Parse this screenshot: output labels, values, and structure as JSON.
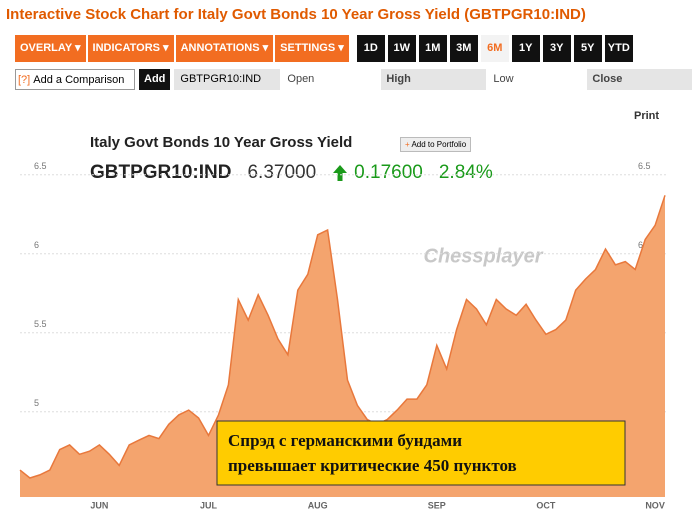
{
  "header": {
    "title": "Interactive Stock Chart for Italy Govt Bonds 10 Year Gross Yield (GBTPGR10:IND)"
  },
  "toolbar": {
    "menus": [
      "OVERLAY ▾",
      "INDICATORS ▾",
      "ANNOTATIONS ▾",
      "SETTINGS ▾"
    ],
    "ranges": [
      "1D",
      "1W",
      "1M",
      "3M",
      "6M",
      "1Y",
      "3Y",
      "5Y",
      "YTD"
    ],
    "active_range": 4
  },
  "comparison": {
    "help": "[?]",
    "placeholder": "Add a Comparison",
    "button": "Add",
    "ticker": "GBTPGR10:IND",
    "fields": [
      "Open",
      "High",
      "Low",
      "Close"
    ]
  },
  "print": "Print",
  "quote": {
    "name": "Italy Govt Bonds 10 Year Gross Yield",
    "portfolio": "Add to Portfolio",
    "ticker": "GBTPGR10:IND",
    "price": "6.37000",
    "change": "0.17600",
    "change_pct": "2.84%"
  },
  "chart_data": {
    "type": "area",
    "watermark": "Chessplayer",
    "annotation": [
      "Спрэд с германскими бундами",
      "превышает критические 450 пунктов"
    ],
    "color": "#f4a46e",
    "line_color": "#e8783c",
    "categories": [
      null,
      null,
      null,
      null,
      null,
      null,
      null,
      null,
      "JUN",
      null,
      null,
      null,
      null,
      null,
      null,
      null,
      null,
      null,
      null,
      "JUL",
      null,
      null,
      null,
      null,
      null,
      null,
      null,
      null,
      null,
      null,
      "AUG",
      null,
      null,
      null,
      null,
      null,
      null,
      null,
      null,
      null,
      null,
      null,
      "SEP",
      null,
      null,
      null,
      null,
      null,
      null,
      null,
      null,
      null,
      null,
      "OCT",
      null,
      null,
      null,
      null,
      null,
      null,
      null,
      null,
      null,
      null,
      "NOV",
      null
    ],
    "values": [
      4.63,
      4.58,
      4.6,
      4.63,
      4.76,
      4.79,
      4.73,
      4.75,
      4.79,
      4.73,
      4.66,
      4.79,
      4.82,
      4.85,
      4.83,
      4.92,
      4.98,
      5.01,
      4.96,
      4.85,
      4.98,
      5.17,
      5.71,
      5.58,
      5.74,
      5.61,
      5.46,
      5.36,
      5.77,
      5.87,
      6.12,
      6.15,
      5.71,
      5.2,
      5.04,
      4.95,
      4.92,
      4.95,
      5.01,
      5.08,
      5.08,
      5.17,
      5.42,
      5.27,
      5.52,
      5.71,
      5.65,
      5.55,
      5.71,
      5.65,
      5.61,
      5.68,
      5.58,
      5.49,
      5.52,
      5.58,
      5.77,
      5.84,
      5.9,
      6.03,
      5.93,
      5.95,
      5.9,
      6.09,
      6.18,
      6.37
    ],
    "ylim": [
      4.46,
      6.72
    ],
    "yticks": [
      5,
      5.5,
      6,
      6.5
    ],
    "grid": true
  }
}
